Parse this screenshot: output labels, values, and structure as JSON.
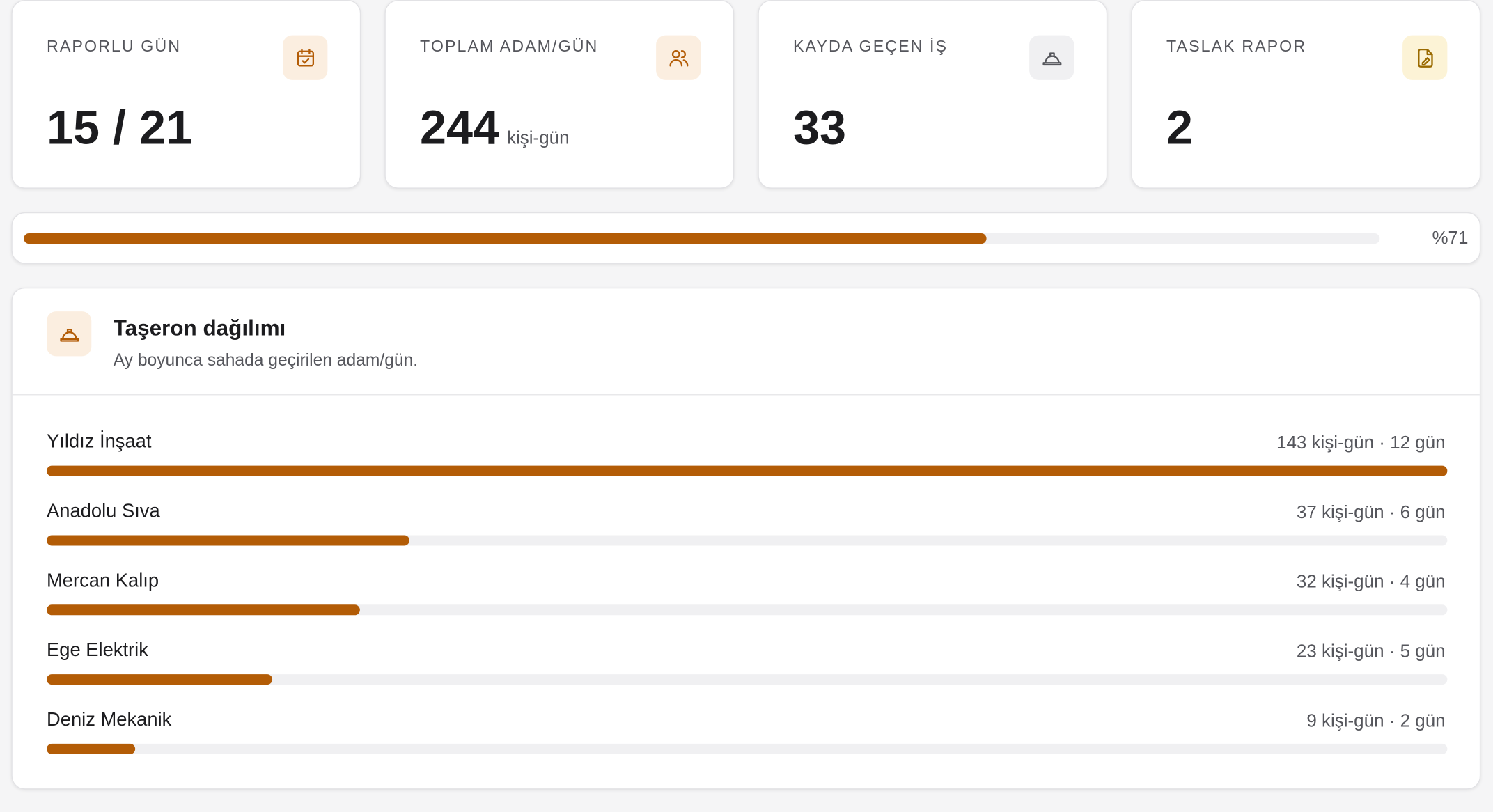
{
  "stats": [
    {
      "label": "RAPORLU GÜN",
      "value": "15 / 21"
    },
    {
      "label": "TOPLAM ADAM/GÜN",
      "value": 244,
      "unit": "kişi-gün"
    },
    {
      "label": "KAYDA GEÇEN İŞ",
      "value": 33
    },
    {
      "label": "TASLAK RAPOR",
      "value": 2
    }
  ],
  "progress": {
    "value": 71,
    "label": "%71"
  },
  "breakdown": {
    "title": "Taşeron dağılımı",
    "subtitle": "Ay boyunca sahada geçirilen adam/gün.",
    "rows": [
      {
        "name": "Yıldız İnşaat",
        "man_days": 143,
        "label": "143 kişi-gün · 12 gün"
      },
      {
        "name": "Anadolu Sıva",
        "man_days": 37,
        "label": "37 kişi-gün · 6 gün"
      },
      {
        "name": "Mercan Kalıp",
        "man_days": 32,
        "label": "32 kişi-gün · 4 gün"
      },
      {
        "name": "Ege Elektrik",
        "man_days": 23,
        "label": "23 kişi-gün · 5 gün"
      },
      {
        "name": "Deniz Mekanik",
        "man_days": 9,
        "label": "9 kişi-gün · 2 gün"
      }
    ]
  }
}
